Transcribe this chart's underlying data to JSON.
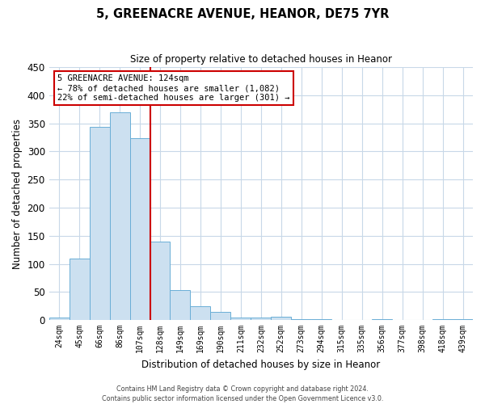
{
  "title": "5, GREENACRE AVENUE, HEANOR, DE75 7YR",
  "subtitle": "Size of property relative to detached houses in Heanor",
  "xlabel": "Distribution of detached houses by size in Heanor",
  "ylabel": "Number of detached properties",
  "bar_labels": [
    "24sqm",
    "45sqm",
    "66sqm",
    "86sqm",
    "107sqm",
    "128sqm",
    "149sqm",
    "169sqm",
    "190sqm",
    "211sqm",
    "232sqm",
    "252sqm",
    "273sqm",
    "294sqm",
    "315sqm",
    "335sqm",
    "356sqm",
    "377sqm",
    "398sqm",
    "418sqm",
    "439sqm"
  ],
  "bar_values": [
    5,
    109,
    344,
    370,
    323,
    140,
    53,
    24,
    14,
    4,
    4,
    6,
    2,
    1,
    0,
    0,
    1,
    0,
    0,
    1,
    2
  ],
  "bar_color": "#cce0f0",
  "bar_edge_color": "#6aaed6",
  "property_line_color": "#cc0000",
  "ylim": [
    0,
    450
  ],
  "yticks": [
    0,
    50,
    100,
    150,
    200,
    250,
    300,
    350,
    400,
    450
  ],
  "annotation_title": "5 GREENACRE AVENUE: 124sqm",
  "annotation_line1": "← 78% of detached houses are smaller (1,082)",
  "annotation_line2": "22% of semi-detached houses are larger (301) →",
  "annotation_box_color": "#cc0000",
  "footer_line1": "Contains HM Land Registry data © Crown copyright and database right 2024.",
  "footer_line2": "Contains public sector information licensed under the Open Government Licence v3.0.",
  "bg_color": "#ffffff",
  "grid_color": "#c8d8e8"
}
